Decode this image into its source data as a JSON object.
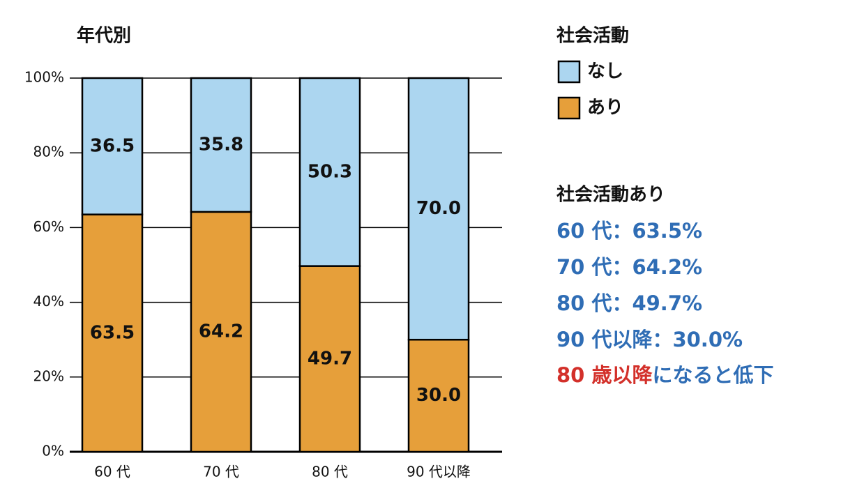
{
  "chart_data": {
    "type": "stacked_bar",
    "title": "年代別",
    "categories": [
      "60 代",
      "70 代",
      "80 代",
      "90 代以降"
    ],
    "series": [
      {
        "name": "あり",
        "color": "#e69f3a",
        "values": [
          63.5,
          64.2,
          49.7,
          30.0
        ],
        "value_labels": [
          "63.5",
          "64.2",
          "49.7",
          "30.0"
        ]
      },
      {
        "name": "なし",
        "color": "#acd6f0",
        "values": [
          36.5,
          35.8,
          50.3,
          70.0
        ],
        "value_labels": [
          "36.5",
          "35.8",
          "50.3",
          "70.0"
        ]
      }
    ],
    "ylim": [
      0,
      100
    ],
    "yticks": [
      {
        "value": 0,
        "label": "0%"
      },
      {
        "value": 20,
        "label": "20%"
      },
      {
        "value": 40,
        "label": "40%"
      },
      {
        "value": 60,
        "label": "60%"
      },
      {
        "value": 80,
        "label": "80%"
      },
      {
        "value": 100,
        "label": "100%"
      }
    ],
    "grid": true,
    "legend_title": "社会活動",
    "annotation_title": "社会活動あり",
    "annotation_color": "#2f6db5",
    "annotations": [
      "60 代：63.5%",
      "70 代：64.2%",
      "80 代：49.7%",
      "90 代以降：30.0%"
    ],
    "conclusion": [
      {
        "text": "80 歳以降",
        "color": "#d3302a"
      },
      {
        "text": "になると低下",
        "color": "#2f6db5"
      }
    ]
  }
}
